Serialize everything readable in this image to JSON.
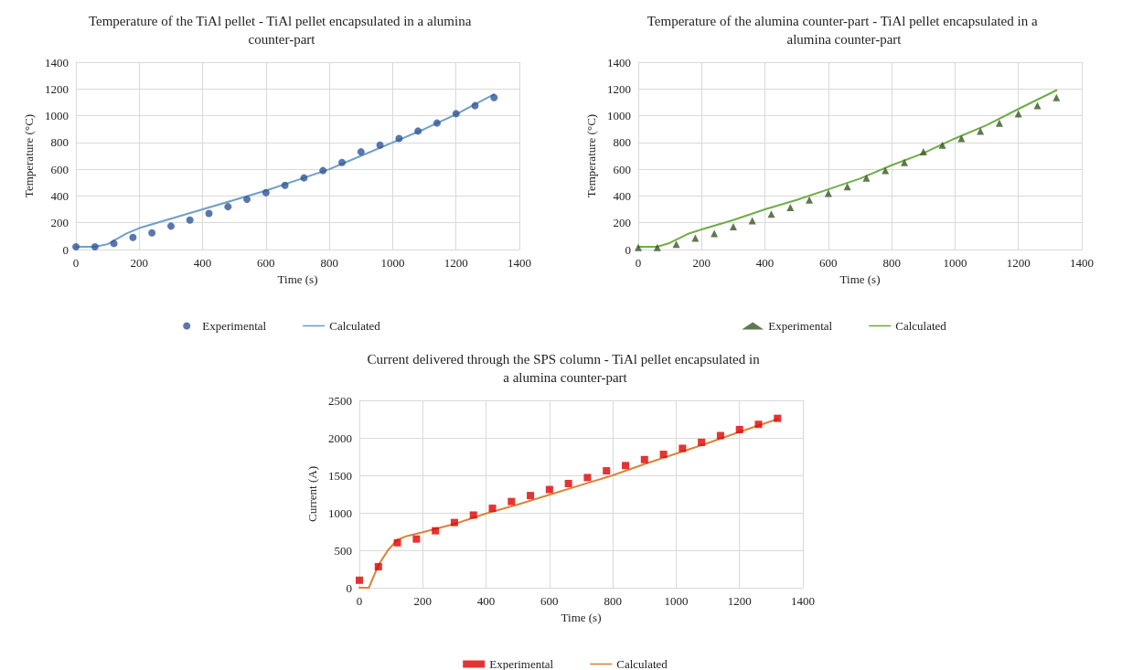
{
  "chart_data": [
    {
      "type": "scatter",
      "title": "Temperature of the TiAl pellet - TiAl pellet encapsulated in a alumina counter-part",
      "xlabel": "Time (s)",
      "ylabel": "Temperature (°C)",
      "xlim": [
        0,
        1400
      ],
      "xticks": [
        0,
        200,
        400,
        600,
        800,
        1000,
        1200,
        1400
      ],
      "ylim": [
        0,
        1400
      ],
      "yticks": [
        0,
        200,
        400,
        600,
        800,
        1000,
        1200,
        1400
      ],
      "grid": true,
      "legend": "bottom",
      "series": [
        {
          "name": "Experimental",
          "marker": "circle",
          "color": "#2f5597",
          "x": [
            0,
            60,
            120,
            180,
            240,
            300,
            360,
            420,
            480,
            540,
            600,
            660,
            720,
            780,
            840,
            900,
            960,
            1020,
            1080,
            1140,
            1200,
            1260,
            1320
          ],
          "values": [
            20,
            20,
            45,
            90,
            125,
            175,
            220,
            270,
            320,
            375,
            425,
            480,
            535,
            590,
            650,
            730,
            780,
            830,
            885,
            945,
            1015,
            1075,
            1135
          ]
        },
        {
          "name": "Calculated",
          "type": "line",
          "marker": "none",
          "color": "#6f9fc8",
          "x": [
            0,
            60,
            100,
            160,
            200,
            300,
            400,
            500,
            600,
            700,
            800,
            900,
            1000,
            1100,
            1200,
            1320
          ],
          "values": [
            20,
            20,
            40,
            120,
            160,
            230,
            300,
            370,
            440,
            520,
            600,
            700,
            800,
            900,
            1010,
            1160
          ]
        }
      ]
    },
    {
      "type": "scatter",
      "title": "Temperature of the alumina counter-part - TiAl pellet encapsulated in a alumina counter-part",
      "xlabel": "Time (s)",
      "ylabel": "Temperature (°C)",
      "xlim": [
        0,
        1400
      ],
      "xticks": [
        0,
        200,
        400,
        600,
        800,
        1000,
        1200,
        1400
      ],
      "ylim": [
        0,
        1400
      ],
      "yticks": [
        0,
        200,
        400,
        600,
        800,
        1000,
        1200,
        1400
      ],
      "grid": true,
      "legend": "bottom",
      "series": [
        {
          "name": "Experimental",
          "marker": "triangle",
          "color": "#375623",
          "x": [
            0,
            60,
            120,
            180,
            240,
            300,
            360,
            420,
            480,
            540,
            600,
            660,
            720,
            780,
            840,
            900,
            960,
            1020,
            1080,
            1140,
            1200,
            1260,
            1320
          ],
          "values": [
            15,
            15,
            40,
            85,
            120,
            170,
            215,
            265,
            315,
            370,
            420,
            470,
            535,
            590,
            650,
            730,
            780,
            830,
            885,
            945,
            1015,
            1075,
            1135
          ]
        },
        {
          "name": "Calculated",
          "type": "line",
          "marker": "none",
          "color": "#70ad47",
          "x": [
            0,
            60,
            100,
            160,
            200,
            300,
            400,
            500,
            600,
            700,
            800,
            900,
            1000,
            1100,
            1200,
            1320
          ],
          "values": [
            20,
            20,
            50,
            120,
            150,
            220,
            300,
            370,
            450,
            530,
            630,
            720,
            830,
            930,
            1050,
            1190
          ]
        }
      ]
    },
    {
      "type": "scatter",
      "title": "Current delivered through the SPS column - TiAl pellet encapsulated in a alumina counter-part",
      "xlabel": "Time (s)",
      "ylabel": "Current (A)",
      "xlim": [
        0,
        1400
      ],
      "xticks": [
        0,
        200,
        400,
        600,
        800,
        1000,
        1200,
        1400
      ],
      "ylim": [
        0,
        2500
      ],
      "yticks": [
        0,
        500,
        1000,
        1500,
        2000,
        2500
      ],
      "grid": true,
      "legend": "bottom",
      "series": [
        {
          "name": "Experimental",
          "marker": "square",
          "color": "#e00000",
          "x": [
            0,
            60,
            120,
            180,
            240,
            300,
            360,
            420,
            480,
            540,
            600,
            660,
            720,
            780,
            840,
            900,
            960,
            1020,
            1080,
            1140,
            1200,
            1260,
            1320
          ],
          "values": [
            100,
            280,
            600,
            650,
            760,
            870,
            970,
            1060,
            1150,
            1230,
            1310,
            1390,
            1470,
            1560,
            1630,
            1710,
            1780,
            1860,
            1940,
            2030,
            2110,
            2180,
            2260
          ]
        },
        {
          "name": "Calculated",
          "type": "line",
          "marker": "none",
          "color": "#d9843b",
          "x": [
            0,
            30,
            60,
            90,
            120,
            150,
            200,
            300,
            400,
            500,
            600,
            700,
            800,
            900,
            1000,
            1100,
            1200,
            1320
          ],
          "values": [
            0,
            0,
            300,
            500,
            640,
            690,
            740,
            850,
            990,
            1110,
            1240,
            1370,
            1500,
            1650,
            1790,
            1930,
            2080,
            2250
          ]
        }
      ]
    }
  ]
}
